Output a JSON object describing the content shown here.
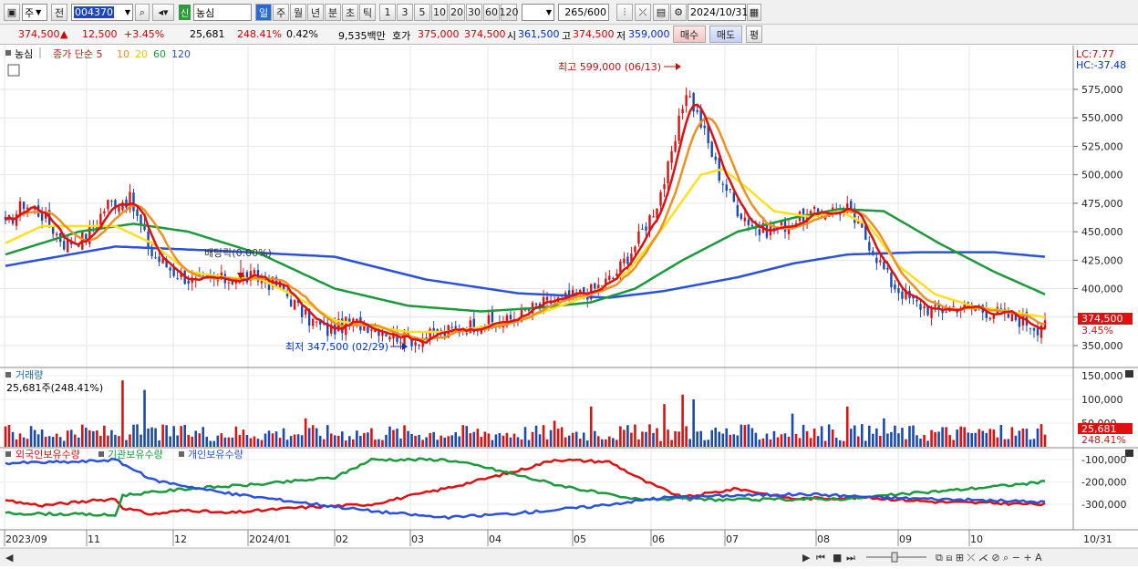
{
  "toolbar": {
    "mode": "주",
    "prev": "전",
    "code": "004370",
    "new_badge": "신",
    "name": "농심",
    "periods": [
      "일",
      "주",
      "월",
      "년",
      "분",
      "초",
      "틱"
    ],
    "active_period": "일",
    "minutes": [
      "1",
      "3",
      "5",
      "10",
      "20",
      "30",
      "60",
      "120"
    ],
    "count": "265",
    "count_total": "/600",
    "date": "2024/10/31"
  },
  "quote": {
    "price": "374,500",
    "arrow": "▲",
    "change": "12,500",
    "rate": "+3.45%",
    "volume": "25,681",
    "vol_ratio": "248.41%",
    "turnover": "0.42%",
    "amount": "9,535백만",
    "ask_label": "호가",
    "ask": "375,000",
    "bid": "374,500",
    "open_label": "시",
    "open": "361,500",
    "high_label": "고",
    "high": "374,500",
    "low_label": "저",
    "low": "359,000",
    "buy": "매수",
    "sell": "매도",
    "eval": "평"
  },
  "legend": {
    "name": "농심",
    "ma_prefix": "종가 단순 5",
    "ma_others": [
      "10",
      "20",
      "60",
      "120"
    ],
    "lc": "LC:7.77",
    "hc": "HC:-37.48"
  },
  "annotations": {
    "high": "최고 599,000 (06/13)",
    "low": "최저 347,500 (02/29)",
    "dividend": "배당락(0.00%)"
  },
  "volume_panel": {
    "title": "거래량",
    "value": "25,681주(248.41%)",
    "price_tag": "25,681",
    "pct_tag": "248.41%"
  },
  "holdings_panel": {
    "foreign": "외국인보유수량",
    "inst": "기관보유수량",
    "indiv": "개인보유수량"
  },
  "price_tag": {
    "price": "374,500",
    "rate": "3.45%"
  },
  "colors": {
    "ma5": "#e01010",
    "ma10": "#f09020",
    "ma20": "#ffe020",
    "ma60": "#1a9a3a",
    "ma120": "#2a50e0",
    "up": "#e01010",
    "down": "#1a4ab0"
  },
  "chart_data": [
    {
      "type": "candlestick",
      "title": "농심",
      "x_labels": [
        "2023/09",
        "11",
        "12",
        "2024/01",
        "02",
        "03",
        "04",
        "05",
        "06",
        "07",
        "08",
        "09",
        "10",
        "10/31"
      ],
      "y_ticks": [
        "575,000",
        "550,000",
        "525,000",
        "500,000",
        "475,000",
        "450,000",
        "425,000",
        "400,000",
        "375,000",
        "350,000"
      ],
      "ylim": [
        337000,
        610000
      ],
      "close_path": [
        [
          0,
          455000
        ],
        [
          5,
          475000
        ],
        [
          10,
          465000
        ],
        [
          16,
          440000
        ],
        [
          22,
          445000
        ],
        [
          28,
          475000
        ],
        [
          34,
          478000
        ],
        [
          40,
          430000
        ],
        [
          46,
          415000
        ],
        [
          52,
          405000
        ],
        [
          60,
          408000
        ],
        [
          68,
          410000
        ],
        [
          75,
          402000
        ],
        [
          82,
          375000
        ],
        [
          88,
          363000
        ],
        [
          94,
          370000
        ],
        [
          100,
          368000
        ],
        [
          106,
          360000
        ],
        [
          112,
          355000
        ],
        [
          118,
          360000
        ],
        [
          124,
          365000
        ],
        [
          130,
          370000
        ],
        [
          136,
          370000
        ],
        [
          142,
          380000
        ],
        [
          148,
          388000
        ],
        [
          154,
          392000
        ],
        [
          160,
          398000
        ],
        [
          166,
          410000
        ],
        [
          172,
          438000
        ],
        [
          178,
          475000
        ],
        [
          182,
          515000
        ],
        [
          186,
          575000
        ],
        [
          190,
          545000
        ],
        [
          195,
          500000
        ],
        [
          200,
          470000
        ],
        [
          206,
          450000
        ],
        [
          212,
          455000
        ],
        [
          218,
          462000
        ],
        [
          224,
          468000
        ],
        [
          230,
          470000
        ],
        [
          236,
          440000
        ],
        [
          242,
          405000
        ],
        [
          248,
          388000
        ],
        [
          254,
          380000
        ],
        [
          260,
          385000
        ],
        [
          266,
          382000
        ],
        [
          272,
          378000
        ],
        [
          278,
          372000
        ],
        [
          282,
          366000
        ],
        [
          284,
          375000
        ]
      ],
      "ma20_path": [
        [
          0,
          440000
        ],
        [
          10,
          455000
        ],
        [
          20,
          455000
        ],
        [
          30,
          455000
        ],
        [
          40,
          440000
        ],
        [
          50,
          415000
        ],
        [
          60,
          410000
        ],
        [
          70,
          408000
        ],
        [
          80,
          392000
        ],
        [
          90,
          372000
        ],
        [
          100,
          367000
        ],
        [
          110,
          362000
        ],
        [
          120,
          362000
        ],
        [
          130,
          366000
        ],
        [
          140,
          372000
        ],
        [
          150,
          383000
        ],
        [
          160,
          395000
        ],
        [
          170,
          415000
        ],
        [
          180,
          455000
        ],
        [
          190,
          500000
        ],
        [
          196,
          505000
        ],
        [
          202,
          490000
        ],
        [
          210,
          468000
        ],
        [
          220,
          463000
        ],
        [
          228,
          468000
        ],
        [
          236,
          455000
        ],
        [
          244,
          420000
        ],
        [
          254,
          395000
        ],
        [
          264,
          385000
        ],
        [
          274,
          380000
        ],
        [
          284,
          375000
        ]
      ],
      "ma60_path": [
        [
          0,
          430000
        ],
        [
          20,
          450000
        ],
        [
          35,
          457000
        ],
        [
          50,
          450000
        ],
        [
          70,
          430000
        ],
        [
          90,
          400000
        ],
        [
          110,
          385000
        ],
        [
          130,
          380000
        ],
        [
          145,
          383000
        ],
        [
          160,
          388000
        ],
        [
          172,
          400000
        ],
        [
          185,
          425000
        ],
        [
          200,
          450000
        ],
        [
          215,
          462000
        ],
        [
          228,
          470000
        ],
        [
          240,
          468000
        ],
        [
          255,
          440000
        ],
        [
          270,
          415000
        ],
        [
          284,
          395000
        ]
      ],
      "ma120_path": [
        [
          0,
          420000
        ],
        [
          30,
          437000
        ],
        [
          60,
          433000
        ],
        [
          90,
          428000
        ],
        [
          115,
          408000
        ],
        [
          140,
          396000
        ],
        [
          165,
          392000
        ],
        [
          180,
          398000
        ],
        [
          200,
          410000
        ],
        [
          215,
          422000
        ],
        [
          230,
          430000
        ],
        [
          250,
          432000
        ],
        [
          270,
          432000
        ],
        [
          284,
          428000
        ]
      ],
      "annotations": [
        "최고 599,000 (06/13)",
        "최저 347,500 (02/29)",
        "배당락(0.00%)"
      ]
    },
    {
      "type": "bar",
      "title": "거래량",
      "y_ticks": [
        "150,000",
        "100,000",
        "50,000"
      ],
      "ylim": [
        0,
        160000
      ],
      "spikes": [
        [
          32,
          140000
        ],
        [
          38,
          120000
        ],
        [
          82,
          60000
        ],
        [
          150,
          55000
        ],
        [
          160,
          85000
        ],
        [
          180,
          90000
        ],
        [
          185,
          110000
        ],
        [
          188,
          100000
        ],
        [
          215,
          70000
        ],
        [
          230,
          85000
        ],
        [
          240,
          60000
        ]
      ],
      "base_level": 30000,
      "last": 25681
    },
    {
      "type": "line",
      "title": "외국인/기관/개인 보유수량",
      "y_ticks": [
        "-100,000",
        "-200,000",
        "-300,000"
      ],
      "series": [
        {
          "name": "외국인보유수량",
          "color": "#e01010",
          "path": [
            [
              0,
              -285000
            ],
            [
              10,
              -305000
            ],
            [
              20,
              -290000
            ],
            [
              30,
              -275000
            ],
            [
              32,
              -315000
            ],
            [
              40,
              -345000
            ],
            [
              50,
              -325000
            ],
            [
              60,
              -340000
            ],
            [
              80,
              -315000
            ],
            [
              100,
              -300000
            ],
            [
              120,
              -230000
            ],
            [
              140,
              -150000
            ],
            [
              150,
              -100000
            ],
            [
              165,
              -110000
            ],
            [
              175,
              -200000
            ],
            [
              185,
              -270000
            ],
            [
              200,
              -230000
            ],
            [
              215,
              -275000
            ],
            [
              235,
              -270000
            ],
            [
              255,
              -290000
            ],
            [
              284,
              -300000
            ]
          ]
        },
        {
          "name": "기관보유수량",
          "color": "#1a9a3a",
          "path": [
            [
              0,
              -340000
            ],
            [
              20,
              -345000
            ],
            [
              30,
              -350000
            ],
            [
              32,
              -260000
            ],
            [
              50,
              -230000
            ],
            [
              70,
              -210000
            ],
            [
              90,
              -180000
            ],
            [
              100,
              -100000
            ],
            [
              120,
              -100000
            ],
            [
              130,
              -130000
            ],
            [
              150,
              -210000
            ],
            [
              170,
              -275000
            ],
            [
              200,
              -280000
            ],
            [
              230,
              -275000
            ],
            [
              260,
              -235000
            ],
            [
              284,
              -200000
            ]
          ]
        },
        {
          "name": "개인보유수량",
          "color": "#2a50e0",
          "path": [
            [
              0,
              -115000
            ],
            [
              20,
              -110000
            ],
            [
              30,
              -100000
            ],
            [
              40,
              -190000
            ],
            [
              60,
              -250000
            ],
            [
              80,
              -290000
            ],
            [
              100,
              -330000
            ],
            [
              120,
              -360000
            ],
            [
              140,
              -340000
            ],
            [
              160,
              -310000
            ],
            [
              180,
              -270000
            ],
            [
              200,
              -260000
            ],
            [
              220,
              -255000
            ],
            [
              240,
              -270000
            ],
            [
              284,
              -290000
            ]
          ]
        }
      ]
    }
  ]
}
